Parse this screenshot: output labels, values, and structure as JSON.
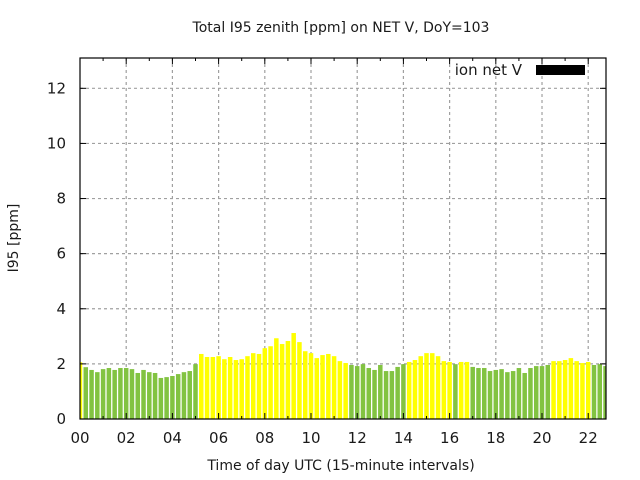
{
  "chart_data": {
    "type": "bar",
    "title": "Total I95 zenith [ppm] on NET V, DoY=103",
    "xlabel": "Time of day UTC (15-minute intervals)",
    "ylabel": "I95 [ppm]",
    "xlim": [
      0,
      22.77
    ],
    "ylim": [
      0,
      13.1
    ],
    "grid": true,
    "legend": {
      "label": "ion net V",
      "color": "#000000",
      "placement": "top-right"
    },
    "x_ticks": [
      {
        "value": 0,
        "label": "00"
      },
      {
        "value": 2,
        "label": "02"
      },
      {
        "value": 4,
        "label": "04"
      },
      {
        "value": 6,
        "label": "06"
      },
      {
        "value": 8,
        "label": "08"
      },
      {
        "value": 10,
        "label": "10"
      },
      {
        "value": 12,
        "label": "12"
      },
      {
        "value": 14,
        "label": "14"
      },
      {
        "value": 16,
        "label": "16"
      },
      {
        "value": 18,
        "label": "18"
      },
      {
        "value": 20,
        "label": "20"
      },
      {
        "value": 22,
        "label": "22"
      }
    ],
    "y_ticks": [
      {
        "value": 0,
        "label": "0"
      },
      {
        "value": 2,
        "label": "2"
      },
      {
        "value": 4,
        "label": "4"
      },
      {
        "value": 6,
        "label": "6"
      },
      {
        "value": 8,
        "label": "8"
      },
      {
        "value": 10,
        "label": "10"
      },
      {
        "value": 12,
        "label": "12"
      }
    ],
    "interval_hours": 0.25,
    "colors": {
      "high": "#ffff00",
      "low": "#82c341",
      "threshold": 2.0
    },
    "values": [
      2.06,
      1.88,
      1.78,
      1.7,
      1.81,
      1.85,
      1.78,
      1.85,
      1.85,
      1.81,
      1.67,
      1.78,
      1.7,
      1.67,
      1.49,
      1.52,
      1.56,
      1.63,
      1.7,
      1.74,
      1.99,
      2.36,
      2.25,
      2.25,
      2.28,
      2.17,
      2.25,
      2.14,
      2.17,
      2.28,
      2.39,
      2.36,
      2.57,
      2.64,
      2.93,
      2.72,
      2.83,
      3.12,
      2.79,
      2.46,
      2.39,
      2.21,
      2.32,
      2.36,
      2.28,
      2.1,
      2.03,
      1.96,
      1.92,
      1.99,
      1.85,
      1.78,
      1.96,
      1.74,
      1.74,
      1.89,
      1.99,
      2.07,
      2.14,
      2.28,
      2.39,
      2.39,
      2.28,
      2.1,
      2.07,
      1.99,
      2.07,
      2.07,
      1.89,
      1.85,
      1.85,
      1.74,
      1.78,
      1.81,
      1.7,
      1.74,
      1.85,
      1.67,
      1.85,
      1.92,
      1.92,
      1.96,
      2.1,
      2.1,
      2.14,
      2.21,
      2.1,
      2.03,
      2.07,
      1.96,
      1.99,
      1.92
    ]
  }
}
